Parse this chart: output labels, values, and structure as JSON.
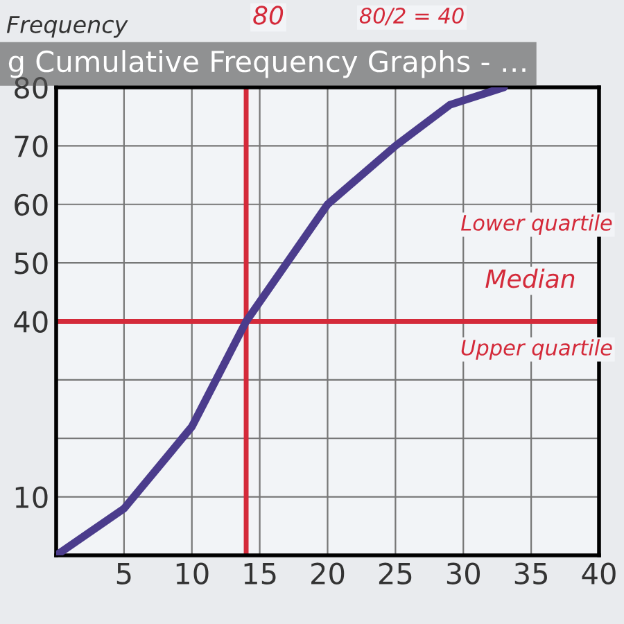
{
  "chart_data": {
    "type": "line",
    "title": "g Cumulative Frequency Graphs - …",
    "ylabel": "Frequency",
    "x": [
      0,
      5,
      10,
      14,
      17,
      20,
      25,
      29,
      33
    ],
    "series": [
      {
        "color": "#4b3c8c",
        "values": [
          0,
          8,
          22,
          40,
          50,
          60,
          70,
          77,
          80
        ]
      }
    ],
    "xlim": [
      0,
      40
    ],
    "ylim": [
      0,
      80
    ],
    "xticks": [
      5,
      10,
      15,
      20,
      25,
      30,
      35,
      40
    ],
    "yticks": [
      10,
      {
        "value": 20,
        "label": null
      },
      {
        "value": 30,
        "label": null
      },
      40,
      50,
      60,
      70,
      80
    ],
    "grid": true,
    "marker": "none",
    "line_style": "solid",
    "ref_lines": [
      {
        "axis": "y",
        "value": 40,
        "color": "#d42a3a"
      },
      {
        "axis": "x",
        "value": 14,
        "color": "#d42a3a"
      }
    ],
    "annotations": [
      "80",
      "80/2 = 40",
      "Lower quartile",
      "Median",
      "Upper quartile"
    ]
  }
}
